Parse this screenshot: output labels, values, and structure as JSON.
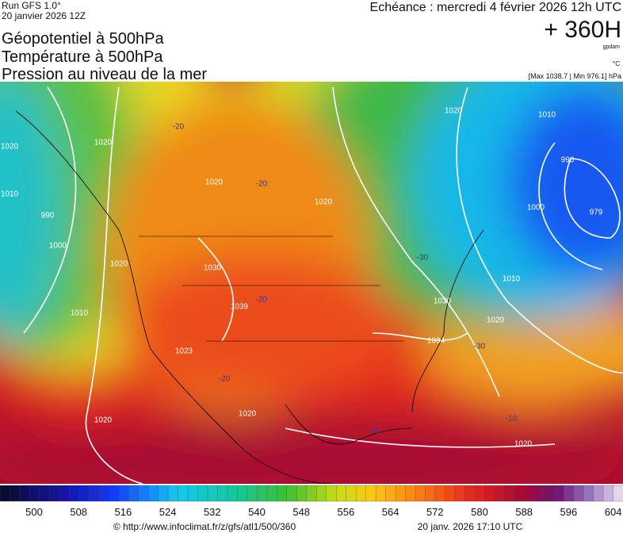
{
  "header": {
    "run": "Run GFS 1.0°",
    "run_date": "20 janvier 2026 12Z",
    "titles": [
      "Géopotentiel à 500hPa",
      "Température à 500hPa",
      "Pression au niveau de la mer"
    ],
    "valid_time": "Echéance : mercredi 4 février 2026 12h UTC",
    "lead": "+ 360H",
    "unit_geopotential": "gpdam",
    "unit_temperature": "°C",
    "pressure_range": "[Max 1038.7 | Min 976.1] hPa"
  },
  "map": {
    "contour_labels": [
      "1020",
      "1010",
      "990",
      "1000",
      "1010",
      "1020",
      "1020",
      "1020",
      "1030",
      "1039",
      "1023",
      "1020",
      "1020",
      "1020",
      "1030",
      "1034",
      "1020",
      "1010",
      "1000",
      "990",
      "979",
      "1010",
      "1020",
      "1020",
      "-20",
      "-20",
      "-20",
      "-20",
      "-30",
      "-30",
      "-10",
      "-10"
    ]
  },
  "legend": {
    "labels": [
      "500",
      "508",
      "516",
      "524",
      "532",
      "540",
      "548",
      "556",
      "564",
      "572",
      "580",
      "588",
      "596",
      "604"
    ]
  },
  "footer": {
    "source": "© http://www.infoclimat.fr/z/gfs/atl1/500/360",
    "generated": "20 janv. 2026 17:10 UTC"
  }
}
